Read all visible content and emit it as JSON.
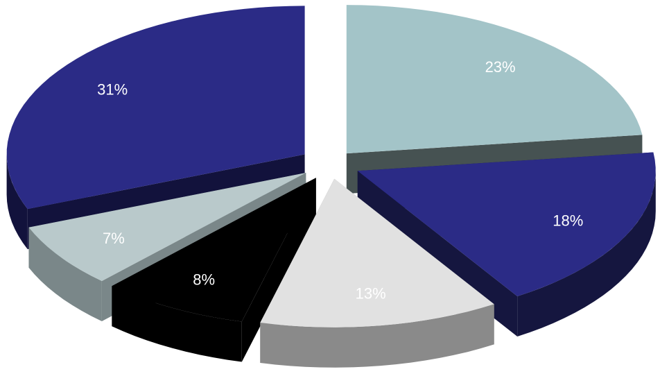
{
  "chart_data": {
    "type": "pie",
    "style": "3d-exploded",
    "title": "",
    "legend": "none",
    "slices": [
      {
        "label": "23%",
        "value": 23,
        "top_color": "#a3c4c8",
        "side_color": "#465252"
      },
      {
        "label": "18%",
        "value": 18,
        "top_color": "#2b2b86",
        "side_color": "#15163f"
      },
      {
        "label": "13%",
        "value": 13,
        "top_color": "#e1e1e1",
        "side_color": "#8a8a8a"
      },
      {
        "label": "8%",
        "value": 8,
        "top_color": "#000000",
        "side_color": "#000000"
      },
      {
        "label": "7%",
        "value": 7,
        "top_color": "#b9c9cb",
        "side_color": "#7a8789"
      },
      {
        "label": "31%",
        "value": 31,
        "top_color": "#2b2b86",
        "side_color": "#12123c"
      }
    ]
  }
}
